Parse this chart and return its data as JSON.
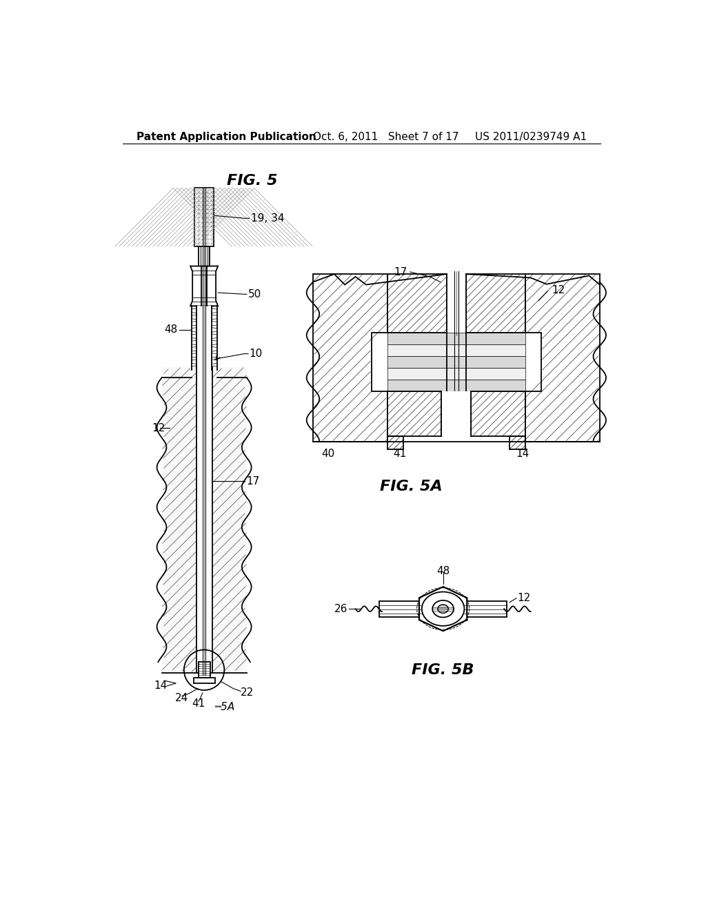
{
  "background_color": "#ffffff",
  "header_left": "Patent Application Publication",
  "header_center": "Oct. 6, 2011   Sheet 7 of 17",
  "header_right": "US 2011/0239749 A1",
  "fig5_title": "FIG. 5",
  "fig5a_title": "FIG. 5A",
  "fig5b_title": "FIG. 5B",
  "title_fontsize": 16,
  "label_fontsize": 11,
  "line_color": "#000000"
}
